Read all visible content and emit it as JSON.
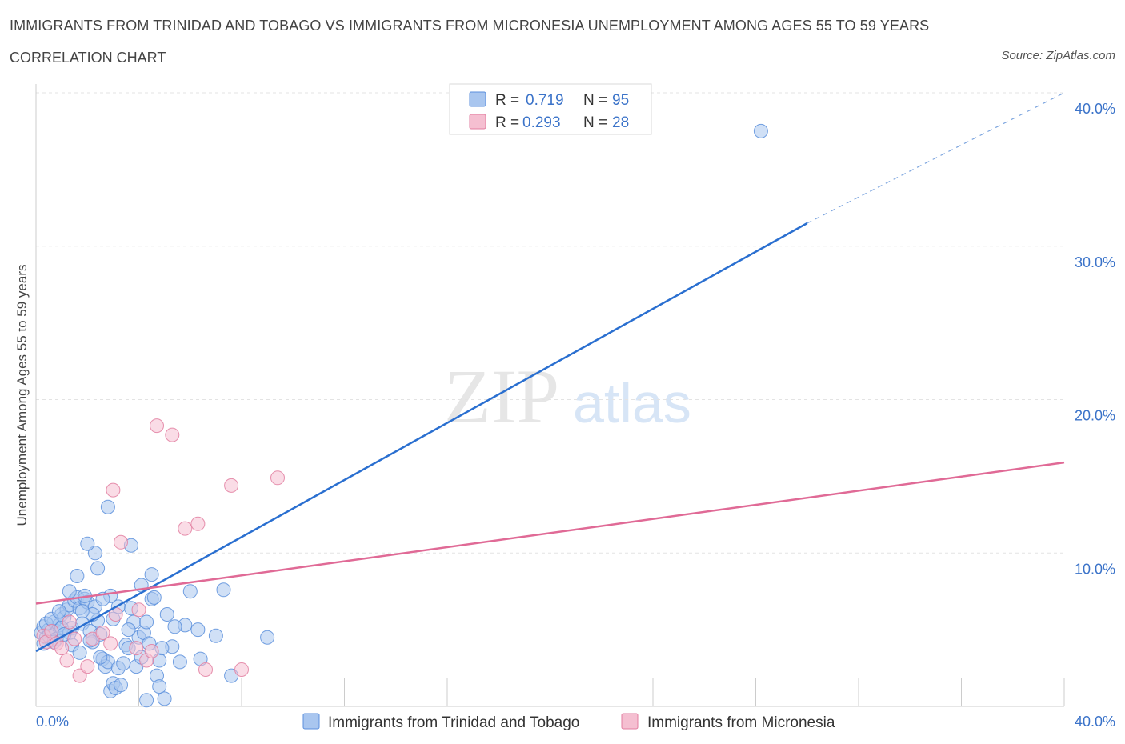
{
  "header": {
    "title": "IMMIGRANTS FROM TRINIDAD AND TOBAGO VS IMMIGRANTS FROM MICRONESIA UNEMPLOYMENT AMONG AGES 55 TO 59 YEARS",
    "subtitle": "CORRELATION CHART",
    "source": "Source: ZipAtlas.com"
  },
  "watermark": {
    "zip": "ZIP",
    "atlas": "atlas"
  },
  "chart_data": {
    "type": "scatter",
    "title": "IMMIGRANTS FROM TRINIDAD AND TOBAGO VS IMMIGRANTS FROM MICRONESIA UNEMPLOYMENT AMONG AGES 55 TO 59 YEARS",
    "xlabel": "",
    "ylabel": "Unemployment Among Ages 55 to 59 years",
    "xlim": [
      0,
      40
    ],
    "ylim": [
      0,
      40
    ],
    "x_tick_labels": [
      "0.0%",
      "40.0%"
    ],
    "y_ticks": [
      10,
      20,
      30,
      40
    ],
    "y_tick_labels": [
      "10.0%",
      "20.0%",
      "30.0%",
      "40.0%"
    ],
    "grid": true,
    "legend_placement": "top-center",
    "stats": [
      {
        "r_label": "R =",
        "r_value": "0.719",
        "n_label": "N =",
        "n_value": "95"
      },
      {
        "r_label": "R =",
        "r_value": "0.293",
        "n_label": "N =",
        "n_value": "28"
      }
    ],
    "series": [
      {
        "name": "Immigrants from Trinidad and Tobago",
        "color": "#5b8fdc",
        "fill": "#a9c6ef",
        "trend": {
          "x0": 0,
          "y0": 3.6,
          "x1": 30,
          "y1": 31.5,
          "dashed_to_x": 40,
          "dashed_to_y": 40
        },
        "points": [
          [
            0.2,
            4.8
          ],
          [
            0.3,
            5.2
          ],
          [
            0.4,
            4.5
          ],
          [
            0.5,
            5.0
          ],
          [
            0.6,
            4.3
          ],
          [
            0.7,
            5.5
          ],
          [
            0.8,
            4.9
          ],
          [
            0.3,
            4.1
          ],
          [
            0.5,
            4.6
          ],
          [
            0.9,
            5.3
          ],
          [
            1.0,
            6.0
          ],
          [
            1.1,
            5.8
          ],
          [
            1.2,
            6.3
          ],
          [
            1.3,
            6.6
          ],
          [
            1.4,
            5.1
          ],
          [
            1.5,
            6.9
          ],
          [
            1.6,
            7.1
          ],
          [
            1.7,
            6.4
          ],
          [
            1.8,
            5.4
          ],
          [
            1.9,
            7.0
          ],
          [
            2.0,
            6.8
          ],
          [
            2.1,
            4.9
          ],
          [
            2.2,
            4.2
          ],
          [
            2.3,
            6.5
          ],
          [
            2.4,
            5.6
          ],
          [
            2.5,
            4.7
          ],
          [
            2.6,
            3.1
          ],
          [
            2.7,
            2.6
          ],
          [
            2.8,
            2.9
          ],
          [
            2.9,
            1.0
          ],
          [
            3.0,
            1.5
          ],
          [
            3.1,
            1.2
          ],
          [
            3.2,
            2.5
          ],
          [
            3.3,
            1.4
          ],
          [
            3.5,
            4.0
          ],
          [
            3.6,
            3.8
          ],
          [
            3.7,
            6.4
          ],
          [
            3.8,
            5.5
          ],
          [
            3.9,
            2.6
          ],
          [
            4.0,
            4.5
          ],
          [
            4.1,
            3.2
          ],
          [
            4.2,
            4.8
          ],
          [
            4.3,
            0.4
          ],
          [
            4.4,
            4.1
          ],
          [
            4.5,
            7.0
          ],
          [
            4.6,
            7.1
          ],
          [
            4.7,
            2.0
          ],
          [
            4.8,
            1.3
          ],
          [
            5.0,
            0.5
          ],
          [
            5.1,
            6.0
          ],
          [
            5.3,
            3.9
          ],
          [
            5.6,
            2.9
          ],
          [
            5.8,
            5.3
          ],
          [
            6.0,
            7.5
          ],
          [
            2.2,
            6.0
          ],
          [
            1.6,
            8.5
          ],
          [
            2.3,
            10.0
          ],
          [
            2.4,
            9.0
          ],
          [
            1.3,
            7.5
          ],
          [
            1.9,
            7.2
          ],
          [
            2.8,
            13.0
          ],
          [
            2.0,
            10.6
          ],
          [
            2.9,
            7.2
          ],
          [
            3.2,
            6.5
          ],
          [
            3.7,
            10.5
          ],
          [
            4.3,
            5.5
          ],
          [
            4.5,
            8.6
          ],
          [
            4.8,
            3.0
          ],
          [
            5.4,
            5.2
          ],
          [
            6.3,
            5.0
          ],
          [
            7.0,
            4.6
          ],
          [
            7.3,
            7.6
          ],
          [
            9.0,
            4.5
          ],
          [
            28.2,
            37.5
          ],
          [
            0.8,
            4.4
          ],
          [
            1.0,
            5.1
          ],
          [
            1.3,
            4.8
          ],
          [
            0.4,
            5.4
          ],
          [
            0.6,
            5.7
          ],
          [
            0.7,
            4.2
          ],
          [
            1.4,
            4.0
          ],
          [
            1.7,
            3.5
          ],
          [
            2.5,
            3.2
          ],
          [
            3.4,
            2.8
          ],
          [
            4.1,
            7.9
          ],
          [
            3.0,
            5.7
          ],
          [
            2.1,
            4.3
          ],
          [
            1.1,
            4.7
          ],
          [
            0.9,
            6.2
          ],
          [
            1.8,
            6.2
          ],
          [
            2.6,
            7.0
          ],
          [
            3.6,
            5.0
          ],
          [
            4.9,
            3.8
          ],
          [
            6.4,
            3.1
          ],
          [
            7.6,
            2.0
          ]
        ]
      },
      {
        "name": "Immigrants from Micronesia",
        "color": "#e27ea0",
        "fill": "#f5bfd1",
        "trend": {
          "x0": 0,
          "y0": 6.7,
          "x1": 40,
          "y1": 15.9
        },
        "points": [
          [
            0.3,
            4.6
          ],
          [
            0.4,
            4.2
          ],
          [
            0.6,
            4.9
          ],
          [
            0.8,
            4.1
          ],
          [
            1.0,
            3.8
          ],
          [
            1.2,
            3.0
          ],
          [
            1.3,
            5.5
          ],
          [
            1.5,
            4.4
          ],
          [
            1.7,
            2.0
          ],
          [
            2.0,
            2.6
          ],
          [
            2.2,
            4.4
          ],
          [
            2.6,
            4.8
          ],
          [
            2.9,
            4.1
          ],
          [
            3.0,
            14.1
          ],
          [
            3.1,
            6.0
          ],
          [
            3.3,
            10.7
          ],
          [
            3.9,
            3.8
          ],
          [
            4.0,
            6.3
          ],
          [
            4.3,
            3.0
          ],
          [
            4.5,
            3.6
          ],
          [
            4.7,
            18.3
          ],
          [
            5.3,
            17.7
          ],
          [
            5.8,
            11.6
          ],
          [
            6.3,
            11.9
          ],
          [
            6.6,
            2.4
          ],
          [
            7.6,
            14.4
          ],
          [
            8.0,
            2.4
          ],
          [
            9.4,
            14.9
          ]
        ]
      }
    ]
  }
}
